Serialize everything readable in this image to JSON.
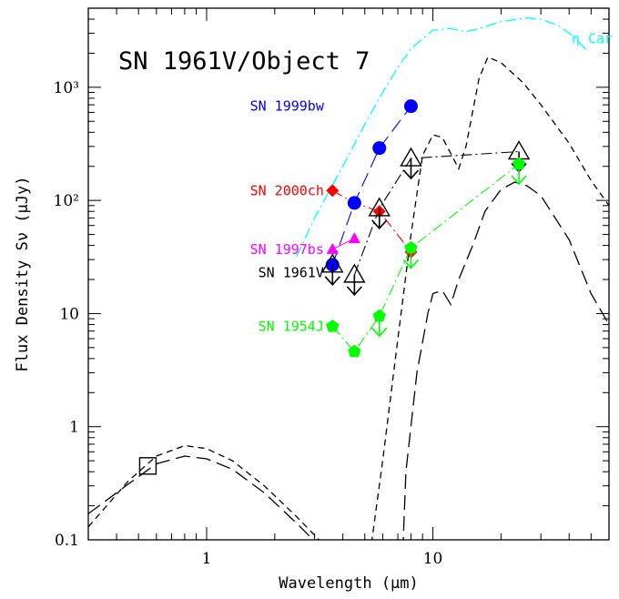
{
  "chart_data": {
    "type": "scatter",
    "title": "SN 1961V/Object 7",
    "xlabel": "Wavelength (μm)",
    "ylabel": "Flux Density Sν (μJy)",
    "xscale": "log",
    "yscale": "log",
    "xlim": [
      0.3,
      60
    ],
    "ylim": [
      0.1,
      5000
    ],
    "x_ticks": [
      {
        "value": 1,
        "label": "1"
      },
      {
        "value": 10,
        "label": "10"
      }
    ],
    "y_ticks": [
      {
        "value": 0.1,
        "label": "0.1"
      },
      {
        "value": 1,
        "label": "1"
      },
      {
        "value": 10,
        "label": "10"
      },
      {
        "value": 100,
        "label": "10²"
      },
      {
        "value": 1000,
        "label": "10³"
      }
    ],
    "series": [
      {
        "name": "SN 1999bw",
        "color": "#0000ff",
        "marker": "circle",
        "points": [
          [
            3.6,
            27
          ],
          [
            4.5,
            95
          ],
          [
            5.8,
            290
          ],
          [
            8.0,
            680
          ]
        ]
      },
      {
        "name": "SN 2000ch",
        "color": "#ff0000",
        "marker": "diamond",
        "points": [
          [
            3.6,
            122
          ],
          [
            5.8,
            80
          ],
          [
            8.0,
            35
          ]
        ]
      },
      {
        "name": "SN 1997bs",
        "color": "#ff00ff",
        "marker": "triangle",
        "points": [
          [
            3.6,
            37
          ],
          [
            4.5,
            46
          ]
        ]
      },
      {
        "name": "SN 1961V",
        "color": "#000000",
        "marker": "open-triangle-upper-limit",
        "points": [
          [
            3.6,
            27
          ],
          [
            4.5,
            22
          ],
          [
            5.8,
            85
          ],
          [
            8.0,
            235
          ],
          [
            24,
            270
          ]
        ]
      },
      {
        "name": "SN 1954J",
        "color": "#00ff00",
        "marker": "pentagon",
        "points": [
          [
            3.6,
            7.7
          ],
          [
            4.5,
            4.6
          ],
          [
            5.8,
            9.5
          ],
          [
            8.0,
            38
          ],
          [
            24,
            210
          ]
        ]
      }
    ],
    "optical_point": {
      "x": 0.55,
      "y": 0.45,
      "marker": "open-square"
    },
    "model_curves": [
      {
        "name": "η Car",
        "color": "#00ffff",
        "style": "dash-dot",
        "points": [
          [
            2.5,
            32
          ],
          [
            3.0,
            70
          ],
          [
            4.0,
            200
          ],
          [
            5.0,
            470
          ],
          [
            6.0,
            900
          ],
          [
            7.0,
            1500
          ],
          [
            8.0,
            2200
          ],
          [
            10.0,
            3200
          ],
          [
            12,
            3300
          ],
          [
            14,
            3100
          ],
          [
            16,
            3300
          ],
          [
            20,
            3800
          ],
          [
            26,
            4100
          ],
          [
            30,
            4000
          ],
          [
            36,
            3500
          ],
          [
            42,
            2800
          ],
          [
            48,
            2100
          ]
        ]
      },
      {
        "name": "",
        "color": "#000000",
        "style": "short-dash",
        "points": [
          [
            0.3,
            0.13
          ],
          [
            0.45,
            0.33
          ],
          [
            0.6,
            0.55
          ],
          [
            0.8,
            0.68
          ],
          [
            1.0,
            0.64
          ],
          [
            1.3,
            0.5
          ],
          [
            1.8,
            0.3
          ],
          [
            2.5,
            0.16
          ],
          [
            3.5,
            0.08
          ],
          [
            4.0,
            0.05
          ],
          [
            5.3,
            0.08
          ],
          [
            6.0,
            0.5
          ],
          [
            7.0,
            6
          ],
          [
            8.0,
            50
          ],
          [
            9.0,
            250
          ],
          [
            10.0,
            380
          ],
          [
            11.0,
            360
          ],
          [
            12.0,
            260
          ],
          [
            13.0,
            190
          ],
          [
            14.0,
            300
          ],
          [
            16.0,
            1200
          ],
          [
            17.5,
            1850
          ],
          [
            20,
            1650
          ],
          [
            25,
            1100
          ],
          [
            30,
            700
          ],
          [
            40,
            320
          ],
          [
            50,
            150
          ],
          [
            60,
            90
          ]
        ]
      },
      {
        "name": "",
        "color": "#000000",
        "style": "long-dash",
        "points": [
          [
            0.3,
            0.17
          ],
          [
            0.45,
            0.31
          ],
          [
            0.6,
            0.47
          ],
          [
            0.8,
            0.55
          ],
          [
            1.0,
            0.52
          ],
          [
            1.3,
            0.42
          ],
          [
            1.8,
            0.26
          ],
          [
            2.5,
            0.14
          ],
          [
            3.3,
            0.08
          ],
          [
            4.0,
            0.05
          ],
          [
            7.3,
            0.05
          ],
          [
            7.6,
            0.4
          ],
          [
            8.5,
            3
          ],
          [
            9.5,
            10
          ],
          [
            10.0,
            15
          ],
          [
            11.0,
            16
          ],
          [
            12.0,
            12
          ],
          [
            13.0,
            20
          ],
          [
            15.0,
            40
          ],
          [
            17.0,
            80
          ],
          [
            20.0,
            125
          ],
          [
            23.0,
            145
          ],
          [
            26.0,
            135
          ],
          [
            30.0,
            110
          ],
          [
            40.0,
            45
          ],
          [
            50.0,
            15
          ],
          [
            60.0,
            8
          ]
        ]
      }
    ],
    "connector_lines": [
      {
        "color": "#0000ff",
        "style": "long-dash",
        "points": [
          [
            3.6,
            27
          ],
          [
            4.5,
            95
          ],
          [
            5.8,
            290
          ],
          [
            8.0,
            680
          ]
        ]
      },
      {
        "color": "#ff0000",
        "style": "dash-dot",
        "points": [
          [
            3.6,
            122
          ],
          [
            4.5,
            95
          ],
          [
            5.8,
            80
          ],
          [
            8.0,
            35
          ]
        ]
      },
      {
        "color": "#ff00ff",
        "style": "solid",
        "points": [
          [
            3.6,
            37
          ],
          [
            4.5,
            46
          ]
        ]
      },
      {
        "color": "#000000",
        "style": "dash-dot",
        "points": [
          [
            4.5,
            22
          ],
          [
            5.8,
            85
          ],
          [
            8.0,
            235
          ],
          [
            24,
            270
          ]
        ]
      },
      {
        "color": "#00ff00",
        "style": "dash-dot",
        "points": [
          [
            3.6,
            7.7
          ],
          [
            4.5,
            4.6
          ],
          [
            5.8,
            9.5
          ],
          [
            8.0,
            38
          ],
          [
            24,
            210
          ]
        ]
      }
    ],
    "annotations": [
      {
        "text": "SN 1999bw",
        "color": "#0000ff",
        "x": 3.3,
        "y": 680
      },
      {
        "text": "SN 2000ch",
        "color": "#ff0000",
        "x": 3.3,
        "y": 122
      },
      {
        "text": "SN 1997bs",
        "color": "#ff00ff",
        "x": 3.3,
        "y": 37
      },
      {
        "text": "SN 1961V",
        "color": "#000000",
        "x": 3.3,
        "y": 23
      },
      {
        "text": "SN 1954J",
        "color": "#00ff00",
        "x": 3.3,
        "y": 7.7
      },
      {
        "text": "η Car",
        "color": "#00ffff",
        "x": 41,
        "y": 2700
      }
    ],
    "grid": false,
    "legend": "none"
  }
}
